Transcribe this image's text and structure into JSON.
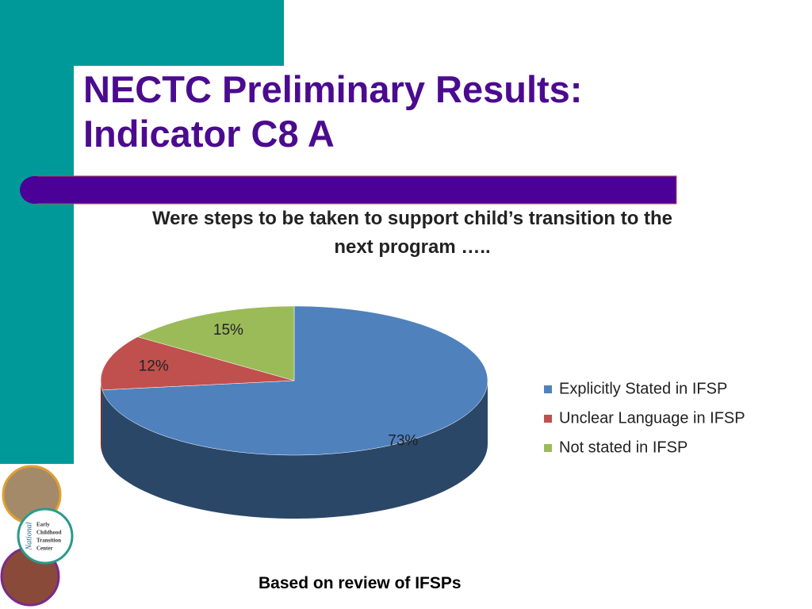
{
  "slide": {
    "title_lines": [
      "NECTC Preliminary Results:",
      "Indicator C8 A"
    ],
    "footer": "Based on review of IFSPs",
    "logo": {
      "side": "National",
      "lines": [
        "Early",
        "Childhood",
        "Transition",
        "Center"
      ]
    }
  },
  "chart_data": {
    "type": "pie",
    "title": "Were steps to be taken to support child’s transition to the next program …..",
    "categories": [
      "Explicitly Stated in IFSP",
      "Unclear Language in IFSP",
      "Not stated in IFSP"
    ],
    "values": [
      73,
      12,
      15
    ],
    "value_labels": [
      "73%",
      "12%",
      "15%"
    ],
    "colors": [
      "#4f81bd",
      "#c0504d",
      "#9bbb59"
    ],
    "legend": "right"
  }
}
